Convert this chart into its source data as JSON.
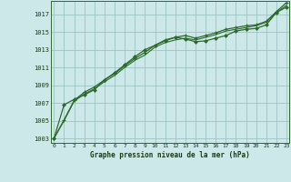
{
  "background_color": "#cce8e8",
  "plot_bg_color": "#cce8e8",
  "grid_color": "#9dc4c4",
  "line_color": "#2d6b2d",
  "marker_color": "#2d6b2d",
  "xlabel": "Graphe pression niveau de la mer (hPa)",
  "ylim": [
    1002.5,
    1018.5
  ],
  "xlim": [
    -0.3,
    23.3
  ],
  "yticks": [
    1003,
    1005,
    1007,
    1009,
    1011,
    1013,
    1015,
    1017
  ],
  "xticks": [
    0,
    1,
    2,
    3,
    4,
    5,
    6,
    7,
    8,
    9,
    10,
    11,
    12,
    13,
    14,
    15,
    16,
    17,
    18,
    19,
    20,
    21,
    22,
    23
  ],
  "series1": [
    1003.0,
    1006.8,
    1007.4,
    1007.9,
    1008.5,
    1009.6,
    1010.4,
    1011.3,
    1012.2,
    1013.0,
    1013.5,
    1014.0,
    1014.4,
    1014.2,
    1013.9,
    1014.0,
    1014.3,
    1014.6,
    1015.1,
    1015.3,
    1015.4,
    1015.8,
    1017.2,
    1017.8
  ],
  "series2": [
    1003.0,
    1005.1,
    1007.3,
    1008.2,
    1008.8,
    1009.6,
    1010.3,
    1011.2,
    1012.0,
    1012.7,
    1013.5,
    1014.1,
    1014.4,
    1014.6,
    1014.3,
    1014.6,
    1014.9,
    1015.3,
    1015.5,
    1015.7,
    1015.8,
    1016.2,
    1017.3,
    1018.3
  ],
  "series3": [
    1003.0,
    1005.0,
    1007.2,
    1008.0,
    1008.6,
    1009.4,
    1010.1,
    1011.0,
    1011.8,
    1012.4,
    1013.3,
    1013.8,
    1014.1,
    1014.3,
    1014.1,
    1014.4,
    1014.7,
    1015.1,
    1015.3,
    1015.5,
    1015.7,
    1016.1,
    1017.2,
    1018.0
  ]
}
